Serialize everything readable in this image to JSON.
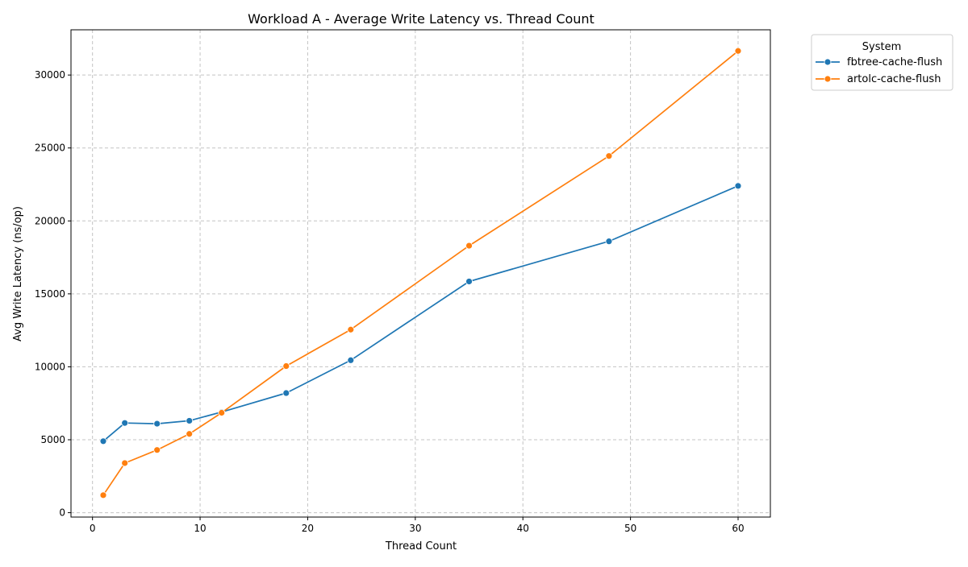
{
  "chart_data": {
    "type": "line",
    "title": "Workload A - Average Write Latency vs. Thread Count",
    "xlabel": "Thread Count",
    "ylabel": "Avg Write Latency (ns/op)",
    "xlim": [
      -2,
      63
    ],
    "ylim": [
      -300,
      33100
    ],
    "xticks": [
      0,
      10,
      20,
      30,
      40,
      50,
      60
    ],
    "yticks": [
      0,
      5000,
      10000,
      15000,
      20000,
      25000,
      30000
    ],
    "grid": true,
    "legend": {
      "title": "System",
      "placement": "outside-top-right"
    },
    "x": [
      1,
      3,
      6,
      9,
      12,
      18,
      24,
      35,
      48,
      60
    ],
    "series": [
      {
        "name": "fbtree-cache-flush",
        "color": "#1f77b4",
        "values": [
          4900,
          6150,
          6100,
          6300,
          6900,
          8200,
          10450,
          15850,
          18600,
          22400
        ]
      },
      {
        "name": "artolc-cache-flush",
        "color": "#ff7f0e",
        "values": [
          1200,
          3400,
          4300,
          5400,
          6850,
          10050,
          12550,
          18300,
          24450,
          31650
        ]
      }
    ]
  }
}
